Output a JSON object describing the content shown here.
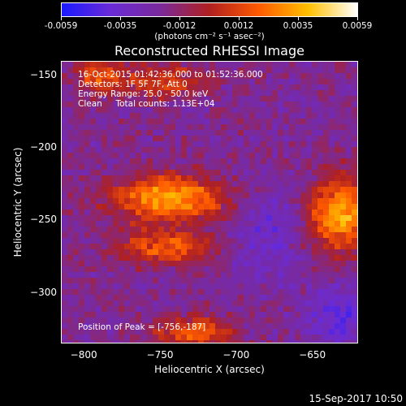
{
  "colorbar": {
    "ticks": [
      "-0.0059",
      "-0.0035",
      "-0.0012",
      "0.0012",
      "0.0035",
      "0.0059"
    ],
    "unit": "(photons cm⁻² s⁻¹ asec⁻²)",
    "colors": [
      "#1a1aff",
      "#6a2bd6",
      "#7a2a9a",
      "#b02020",
      "#ff5a00",
      "#ffc000",
      "#ffffff"
    ]
  },
  "title": "Reconstructed RHESSI Image",
  "info": {
    "line1": "16-Oct-2015 01:42:36.000 to 01:52:36.000",
    "line2": "Detectors: 1F 5F 7F, Att 0",
    "line3": "Energy Range: 25.0 - 50.0 keV",
    "line4": "Clean     Total counts: 1.13E+04"
  },
  "peak": "Position of Peak = [-756,-187]",
  "axes": {
    "xlabel": "Heliocentric X (arcsec)",
    "ylabel": "Heliocentric Y (arcsec)",
    "xticks": [
      "-800",
      "-750",
      "-700",
      "-650"
    ],
    "yticks": [
      "-150",
      "-200",
      "-250",
      "-300"
    ],
    "xlim": [
      -815,
      -620
    ],
    "ylim": [
      -335,
      -140
    ]
  },
  "stamp": "15-Sep-2017 10:50"
}
